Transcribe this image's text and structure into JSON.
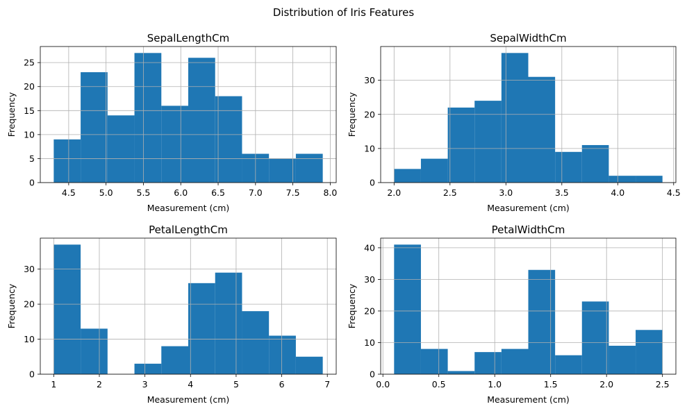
{
  "figure": {
    "title": "Distribution of Iris Features"
  },
  "colors": {
    "bar": "#1f77b4",
    "grid": "#b0b0b0",
    "axis": "#000000"
  },
  "chart_data": [
    {
      "type": "bar",
      "title": "SepalLengthCm",
      "xlabel": "Measurement (cm)",
      "ylabel": "Frequency",
      "bin_edges": [
        4.3,
        4.66,
        5.02,
        5.38,
        5.74,
        6.1,
        6.46,
        6.82,
        7.18,
        7.54,
        7.9
      ],
      "values": [
        9,
        23,
        14,
        27,
        16,
        26,
        18,
        6,
        5,
        6
      ],
      "xlim": [
        4.12,
        8.08
      ],
      "ylim": [
        0,
        28.35
      ],
      "xticks": [
        4.5,
        5.0,
        5.5,
        6.0,
        6.5,
        7.0,
        7.5,
        8.0
      ],
      "xtick_labels": [
        "4.5",
        "5.0",
        "5.5",
        "6.0",
        "6.5",
        "7.0",
        "7.5",
        "8.0"
      ],
      "yticks": [
        0,
        5,
        10,
        15,
        20,
        25
      ],
      "ytick_labels": [
        "0",
        "5",
        "10",
        "15",
        "20",
        "25"
      ],
      "grid": true
    },
    {
      "type": "bar",
      "title": "SepalWidthCm",
      "xlabel": "Measurement (cm)",
      "ylabel": "Frequency",
      "bin_edges": [
        2.0,
        2.24,
        2.48,
        2.72,
        2.96,
        3.2,
        3.44,
        3.68,
        3.92,
        4.16,
        4.4
      ],
      "values": [
        4,
        7,
        22,
        24,
        38,
        31,
        9,
        11,
        2,
        2
      ],
      "xlim": [
        1.88,
        4.52
      ],
      "ylim": [
        0,
        39.9
      ],
      "xticks": [
        2.0,
        2.5,
        3.0,
        3.5,
        4.0,
        4.5
      ],
      "xtick_labels": [
        "2.0",
        "2.5",
        "3.0",
        "3.5",
        "4.0",
        "4.5"
      ],
      "yticks": [
        0,
        10,
        20,
        30
      ],
      "ytick_labels": [
        "0",
        "10",
        "20",
        "30"
      ],
      "grid": true
    },
    {
      "type": "bar",
      "title": "PetalLengthCm",
      "xlabel": "Measurement (cm)",
      "ylabel": "Frequency",
      "bin_edges": [
        1.0,
        1.59,
        2.18,
        2.77,
        3.36,
        3.95,
        4.54,
        5.13,
        5.72,
        6.31,
        6.9
      ],
      "values": [
        37,
        13,
        0,
        3,
        8,
        26,
        29,
        18,
        11,
        5
      ],
      "xlim": [
        0.705,
        7.195
      ],
      "ylim": [
        0,
        38.85
      ],
      "xticks": [
        1,
        2,
        3,
        4,
        5,
        6,
        7
      ],
      "xtick_labels": [
        "1",
        "2",
        "3",
        "4",
        "5",
        "6",
        "7"
      ],
      "yticks": [
        0,
        10,
        20,
        30
      ],
      "ytick_labels": [
        "0",
        "10",
        "20",
        "30"
      ],
      "grid": true
    },
    {
      "type": "bar",
      "title": "PetalWidthCm",
      "xlabel": "Measurement (cm)",
      "ylabel": "Frequency",
      "bin_edges": [
        0.1,
        0.34,
        0.58,
        0.82,
        1.06,
        1.3,
        1.54,
        1.78,
        2.02,
        2.26,
        2.5
      ],
      "values": [
        41,
        8,
        1,
        7,
        8,
        33,
        6,
        23,
        9,
        14
      ],
      "xlim": [
        -0.02,
        2.62
      ],
      "ylim": [
        0,
        43.05
      ],
      "xticks": [
        0.0,
        0.5,
        1.0,
        1.5,
        2.0,
        2.5
      ],
      "xtick_labels": [
        "0.0",
        "0.5",
        "1.0",
        "1.5",
        "2.0",
        "2.5"
      ],
      "yticks": [
        0,
        10,
        20,
        30,
        40
      ],
      "ytick_labels": [
        "0",
        "10",
        "20",
        "30",
        "40"
      ],
      "grid": true
    }
  ]
}
